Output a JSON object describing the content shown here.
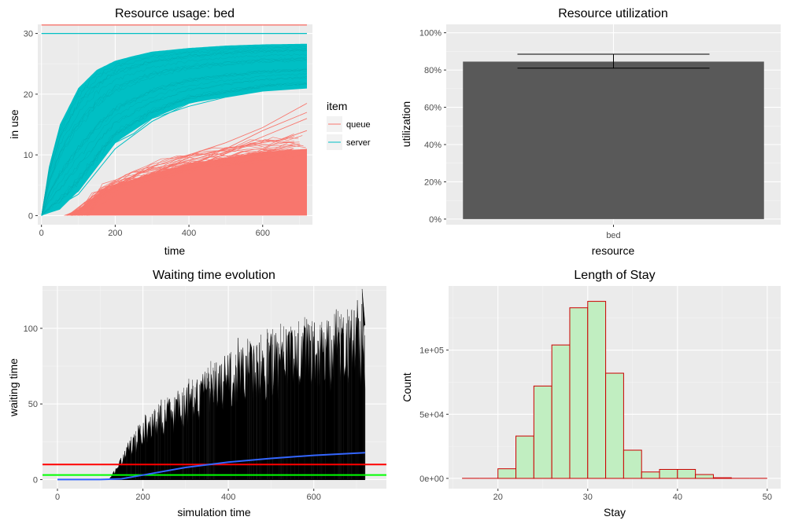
{
  "colors": {
    "panel": "#EBEBEB",
    "grid_major": "#FFFFFF",
    "grid_minor": "#F5F5F5",
    "queue": "#F8766D",
    "server": "#00BFC4",
    "bar": "#595959",
    "mean_line": "#FF0000",
    "median_line": "#00FF00",
    "smooth_line": "#3366FF",
    "hist_fill": "#C1EEC1",
    "hist_edge": "#CC0000",
    "ink": "#000000"
  },
  "chart_data": [
    {
      "id": "usage",
      "type": "line",
      "title": "Resource usage: bed",
      "xlabel": "time",
      "ylabel": "in use",
      "xlim": [
        -10,
        735
      ],
      "ylim": [
        -1.5,
        31.5
      ],
      "xticks": [
        0,
        200,
        400,
        600
      ],
      "yticks": [
        0,
        10,
        20,
        30
      ],
      "legend": {
        "title": "item",
        "entries": [
          "queue",
          "server"
        ],
        "placement": "right"
      },
      "capacity": 30,
      "series": [
        {
          "name": "server",
          "band_upper": {
            "x": [
              0,
              20,
              50,
              100,
              150,
              200,
              250,
              300,
              400,
              500,
              600,
              720
            ],
            "y": [
              0,
              8,
              15,
              21,
              24,
              25.5,
              26.3,
              27,
              27.6,
              28,
              28.2,
              28.3
            ]
          },
          "band_lower": {
            "x": [
              0,
              50,
              100,
              150,
              200,
              250,
              300,
              400,
              500,
              600,
              720
            ],
            "y": [
              0,
              1,
              4,
              8,
              12,
              14,
              16,
              18.5,
              19.5,
              20.5,
              21
            ]
          },
          "outliers": [
            {
              "x": [
                0,
                100,
                200,
                250,
                300,
                400,
                500,
                600,
                720
              ],
              "y": [
                0,
                4,
                12,
                13.5,
                16,
                18,
                19.5,
                20.5,
                21
              ]
            },
            {
              "x": [
                0,
                100,
                200,
                300,
                400,
                500,
                600,
                720
              ],
              "y": [
                0,
                3.5,
                11,
                15.5,
                18.5,
                19.8,
                21,
                22
              ]
            }
          ]
        },
        {
          "name": "queue",
          "band_upper": {
            "x": [
              0,
              60,
              80,
              100,
              150,
              200,
              300,
              400,
              500,
              600,
              720
            ],
            "y": [
              0,
              0,
              0.5,
              1,
              3.5,
              5,
              7,
              8.5,
              9.5,
              10.5,
              11
            ]
          },
          "outliers": [
            {
              "x": [
                80,
                150,
                200,
                300,
                400,
                500,
                600,
                720
              ],
              "y": [
                0,
                3,
                5,
                8,
                10,
                12,
                14.5,
                18.5
              ]
            },
            {
              "x": [
                90,
                200,
                300,
                400,
                500,
                600,
                720
              ],
              "y": [
                0,
                4,
                7,
                9.5,
                11,
                14,
                17
              ]
            },
            {
              "x": [
                100,
                200,
                300,
                400,
                500,
                600,
                720
              ],
              "y": [
                0,
                4.5,
                6.5,
                8.5,
                10.5,
                13,
                16
              ]
            },
            {
              "x": [
                110,
                250,
                350,
                450,
                550,
                650,
                720
              ],
              "y": [
                0,
                5,
                6.5,
                9,
                11.5,
                12.5,
                14
              ]
            }
          ]
        }
      ]
    },
    {
      "id": "utilization",
      "type": "bar",
      "title": "Resource utilization",
      "xlabel": "resource",
      "ylabel": "utilization",
      "categories": [
        "bed"
      ],
      "values": [
        0.845
      ],
      "error_bar": {
        "low": 0.81,
        "high": 0.885
      },
      "ylim": [
        -0.03,
        1.045
      ],
      "yticks": [
        0,
        0.2,
        0.4,
        0.6,
        0.8,
        1.0
      ],
      "ytick_labels": [
        "0%",
        "20%",
        "40%",
        "60%",
        "80%",
        "100%"
      ]
    },
    {
      "id": "waiting",
      "type": "line",
      "title": "Waiting time evolution",
      "xlabel": "simulation time",
      "ylabel": "waiting time",
      "xlim": [
        -35,
        770
      ],
      "ylim": [
        -6,
        128
      ],
      "xticks": [
        0,
        200,
        400,
        600
      ],
      "yticks": [
        0,
        50,
        100
      ],
      "mean_line": 10,
      "median_line": 3,
      "smooth": {
        "x": [
          0,
          100,
          150,
          200,
          300,
          400,
          500,
          600,
          720
        ],
        "y": [
          0,
          0,
          0.5,
          3,
          8,
          11.5,
          14,
          16,
          17.8
        ]
      },
      "spread_upper": {
        "x": [
          120,
          150,
          200,
          300,
          400,
          500,
          600,
          720
        ],
        "y": [
          0,
          15,
          40,
          60,
          80,
          92,
          100,
          105
        ]
      },
      "peak": {
        "x": 713,
        "y": 126
      }
    },
    {
      "id": "los",
      "type": "bar",
      "title": "Length of Stay",
      "xlabel": "Stay",
      "ylabel": "Count",
      "xlim": [
        14.5,
        51.5
      ],
      "ylim": [
        -8000,
        150000
      ],
      "xticks": [
        20,
        30,
        40,
        50
      ],
      "yticks": [
        0,
        50000,
        100000
      ],
      "ytick_labels": [
        "0e+00",
        "5e+04",
        "1e+05"
      ],
      "bin_edges": [
        16,
        18,
        20,
        22,
        24,
        26,
        28,
        30,
        32,
        34,
        36,
        38,
        40,
        42,
        44,
        46,
        48,
        50
      ],
      "counts": [
        0,
        0,
        7500,
        33000,
        72000,
        104000,
        133000,
        138000,
        82000,
        22000,
        5000,
        7000,
        7000,
        3000,
        500,
        0,
        0
      ]
    }
  ]
}
